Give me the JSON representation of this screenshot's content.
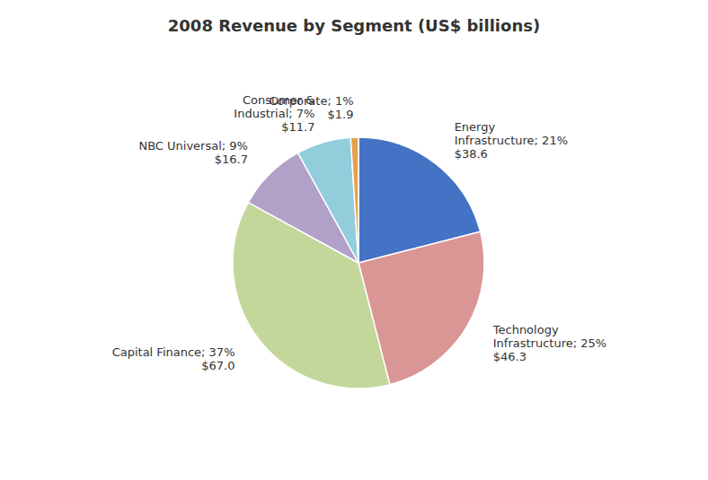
{
  "chart_data": {
    "type": "pie",
    "title": "2008 Revenue by Segment (US$ billions)",
    "categories": [
      "Energy\nInfrastructure",
      "Technology\nInfrastructure",
      "Capital Finance",
      "NBC Universal",
      "Consumer &\nIndustrial",
      "Corporate"
    ],
    "values": [
      21,
      25,
      37,
      9,
      7,
      1
    ],
    "value_labels": [
      "Energy\nInfrastructure; 21%\n$38.6",
      "Technology\nInfrastructure; 25%\n$46.3",
      "Capital Finance; 37%\n$67.0",
      "NBC Universal; 9%\n$16.7",
      "Consumer &\nIndustrial; 7%\n$11.7",
      "Corporate; 1%\n$1.9"
    ],
    "colors": [
      "#4472C4",
      "#DA9694",
      "#C4D79B",
      "#B1A0C7",
      "#92CDDC",
      "#E6A050"
    ]
  }
}
